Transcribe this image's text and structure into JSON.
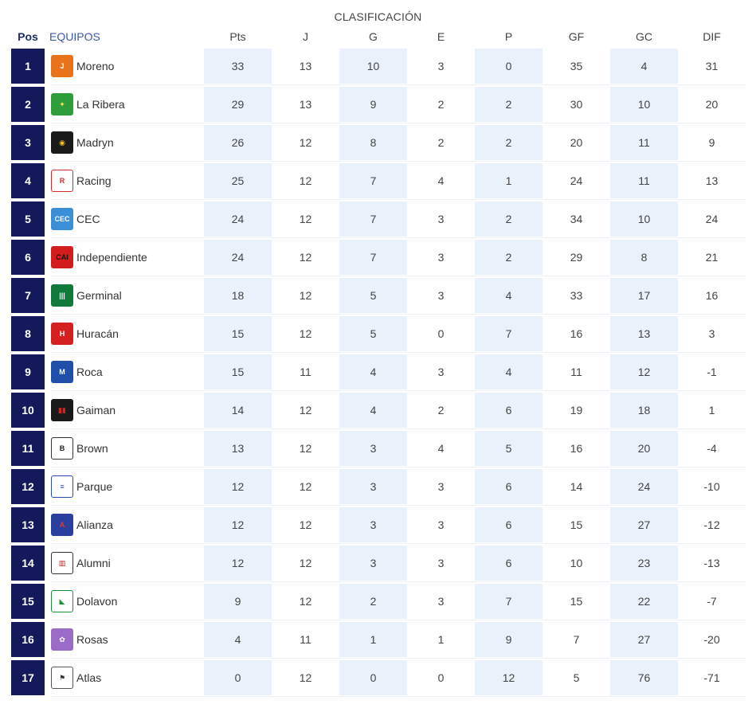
{
  "title": "CLASIFICACIÓN",
  "headers": {
    "pos": "Pos",
    "team": "EQUIPOS",
    "cols": [
      "Pts",
      "J",
      "G",
      "E",
      "P",
      "GF",
      "GC",
      "DIF"
    ]
  },
  "colors": {
    "pos_bg": "#13195a",
    "shade": "#e9f2fa",
    "team_header": "#3b57a8"
  },
  "rows": [
    {
      "pos": "1",
      "team": "Moreno",
      "icon": "moreno-crest-icon",
      "stats": [
        "33",
        "13",
        "10",
        "3",
        "0",
        "35",
        "4",
        "31"
      ]
    },
    {
      "pos": "2",
      "team": "La Ribera",
      "icon": "la-ribera-crest-icon",
      "stats": [
        "29",
        "13",
        "9",
        "2",
        "2",
        "30",
        "10",
        "20"
      ]
    },
    {
      "pos": "3",
      "team": "Madryn",
      "icon": "madryn-crest-icon",
      "stats": [
        "26",
        "12",
        "8",
        "2",
        "2",
        "20",
        "11",
        "9"
      ]
    },
    {
      "pos": "4",
      "team": "Racing",
      "icon": "racing-crest-icon",
      "stats": [
        "25",
        "12",
        "7",
        "4",
        "1",
        "24",
        "11",
        "13"
      ]
    },
    {
      "pos": "5",
      "team": "CEC",
      "icon": "cec-crest-icon",
      "stats": [
        "24",
        "12",
        "7",
        "3",
        "2",
        "34",
        "10",
        "24"
      ]
    },
    {
      "pos": "6",
      "team": "Independiente",
      "icon": "independiente-crest-icon",
      "stats": [
        "24",
        "12",
        "7",
        "3",
        "2",
        "29",
        "8",
        "21"
      ]
    },
    {
      "pos": "7",
      "team": "Germinal",
      "icon": "germinal-crest-icon",
      "stats": [
        "18",
        "12",
        "5",
        "3",
        "4",
        "33",
        "17",
        "16"
      ]
    },
    {
      "pos": "8",
      "team": "Huracán",
      "icon": "huracan-crest-icon",
      "stats": [
        "15",
        "12",
        "5",
        "0",
        "7",
        "16",
        "13",
        "3"
      ]
    },
    {
      "pos": "9",
      "team": "Roca",
      "icon": "roca-crest-icon",
      "stats": [
        "15",
        "11",
        "4",
        "3",
        "4",
        "11",
        "12",
        "-1"
      ]
    },
    {
      "pos": "10",
      "team": "Gaiman",
      "icon": "gaiman-crest-icon",
      "stats": [
        "14",
        "12",
        "4",
        "2",
        "6",
        "19",
        "18",
        "1"
      ]
    },
    {
      "pos": "11",
      "team": "Brown",
      "icon": "brown-crest-icon",
      "stats": [
        "13",
        "12",
        "3",
        "4",
        "5",
        "16",
        "20",
        "-4"
      ]
    },
    {
      "pos": "12",
      "team": "Parque",
      "icon": "parque-crest-icon",
      "stats": [
        "12",
        "12",
        "3",
        "3",
        "6",
        "14",
        "24",
        "-10"
      ]
    },
    {
      "pos": "13",
      "team": "Alianza",
      "icon": "alianza-crest-icon",
      "stats": [
        "12",
        "12",
        "3",
        "3",
        "6",
        "15",
        "27",
        "-12"
      ]
    },
    {
      "pos": "14",
      "team": "Alumni",
      "icon": "alumni-crest-icon",
      "stats": [
        "12",
        "12",
        "3",
        "3",
        "6",
        "10",
        "23",
        "-13"
      ]
    },
    {
      "pos": "15",
      "team": "Dolavon",
      "icon": "dolavon-crest-icon",
      "stats": [
        "9",
        "12",
        "2",
        "3",
        "7",
        "15",
        "22",
        "-7"
      ]
    },
    {
      "pos": "16",
      "team": "Rosas",
      "icon": "rosas-crest-icon",
      "stats": [
        "4",
        "11",
        "1",
        "1",
        "9",
        "7",
        "27",
        "-20"
      ]
    },
    {
      "pos": "17",
      "team": "Atlas",
      "icon": "atlas-crest-icon",
      "stats": [
        "0",
        "12",
        "0",
        "0",
        "12",
        "5",
        "76",
        "-71"
      ]
    }
  ]
}
